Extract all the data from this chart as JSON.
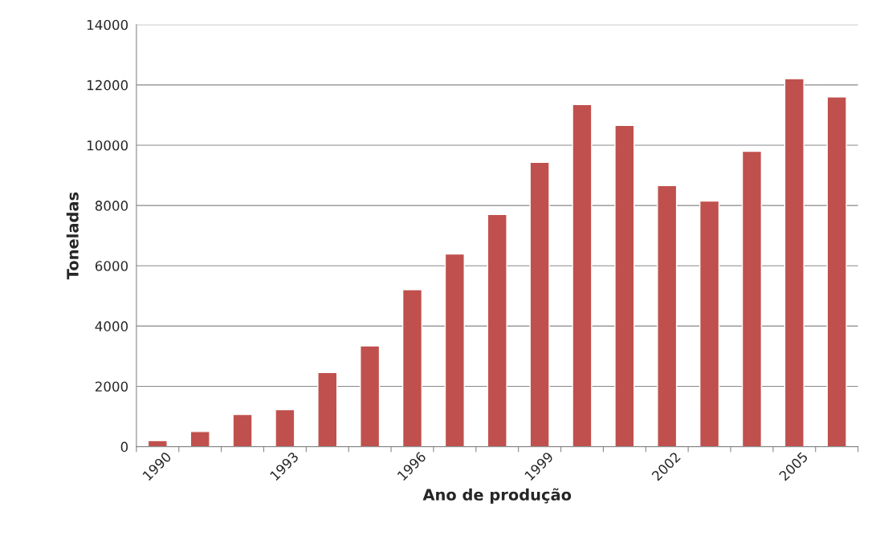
{
  "chart_data": {
    "type": "bar",
    "xlabel": "Ano de produção",
    "ylabel": "Toneladas",
    "categories": [
      "1990",
      null,
      null,
      "1993",
      null,
      null,
      "1996",
      null,
      null,
      "1999",
      null,
      null,
      "2002",
      null,
      null,
      "2005",
      null
    ],
    "values": [
      200,
      500,
      1070,
      1230,
      2460,
      3340,
      5210,
      6390,
      7700,
      9430,
      11350,
      10660,
      8660,
      8150,
      9800,
      12210,
      11600
    ],
    "color": "#c0504d",
    "ylim": [
      0,
      14000
    ],
    "yticks": [
      0,
      2000,
      4000,
      6000,
      8000,
      10000,
      12000,
      14000
    ],
    "grid": "y",
    "legend": false
  }
}
